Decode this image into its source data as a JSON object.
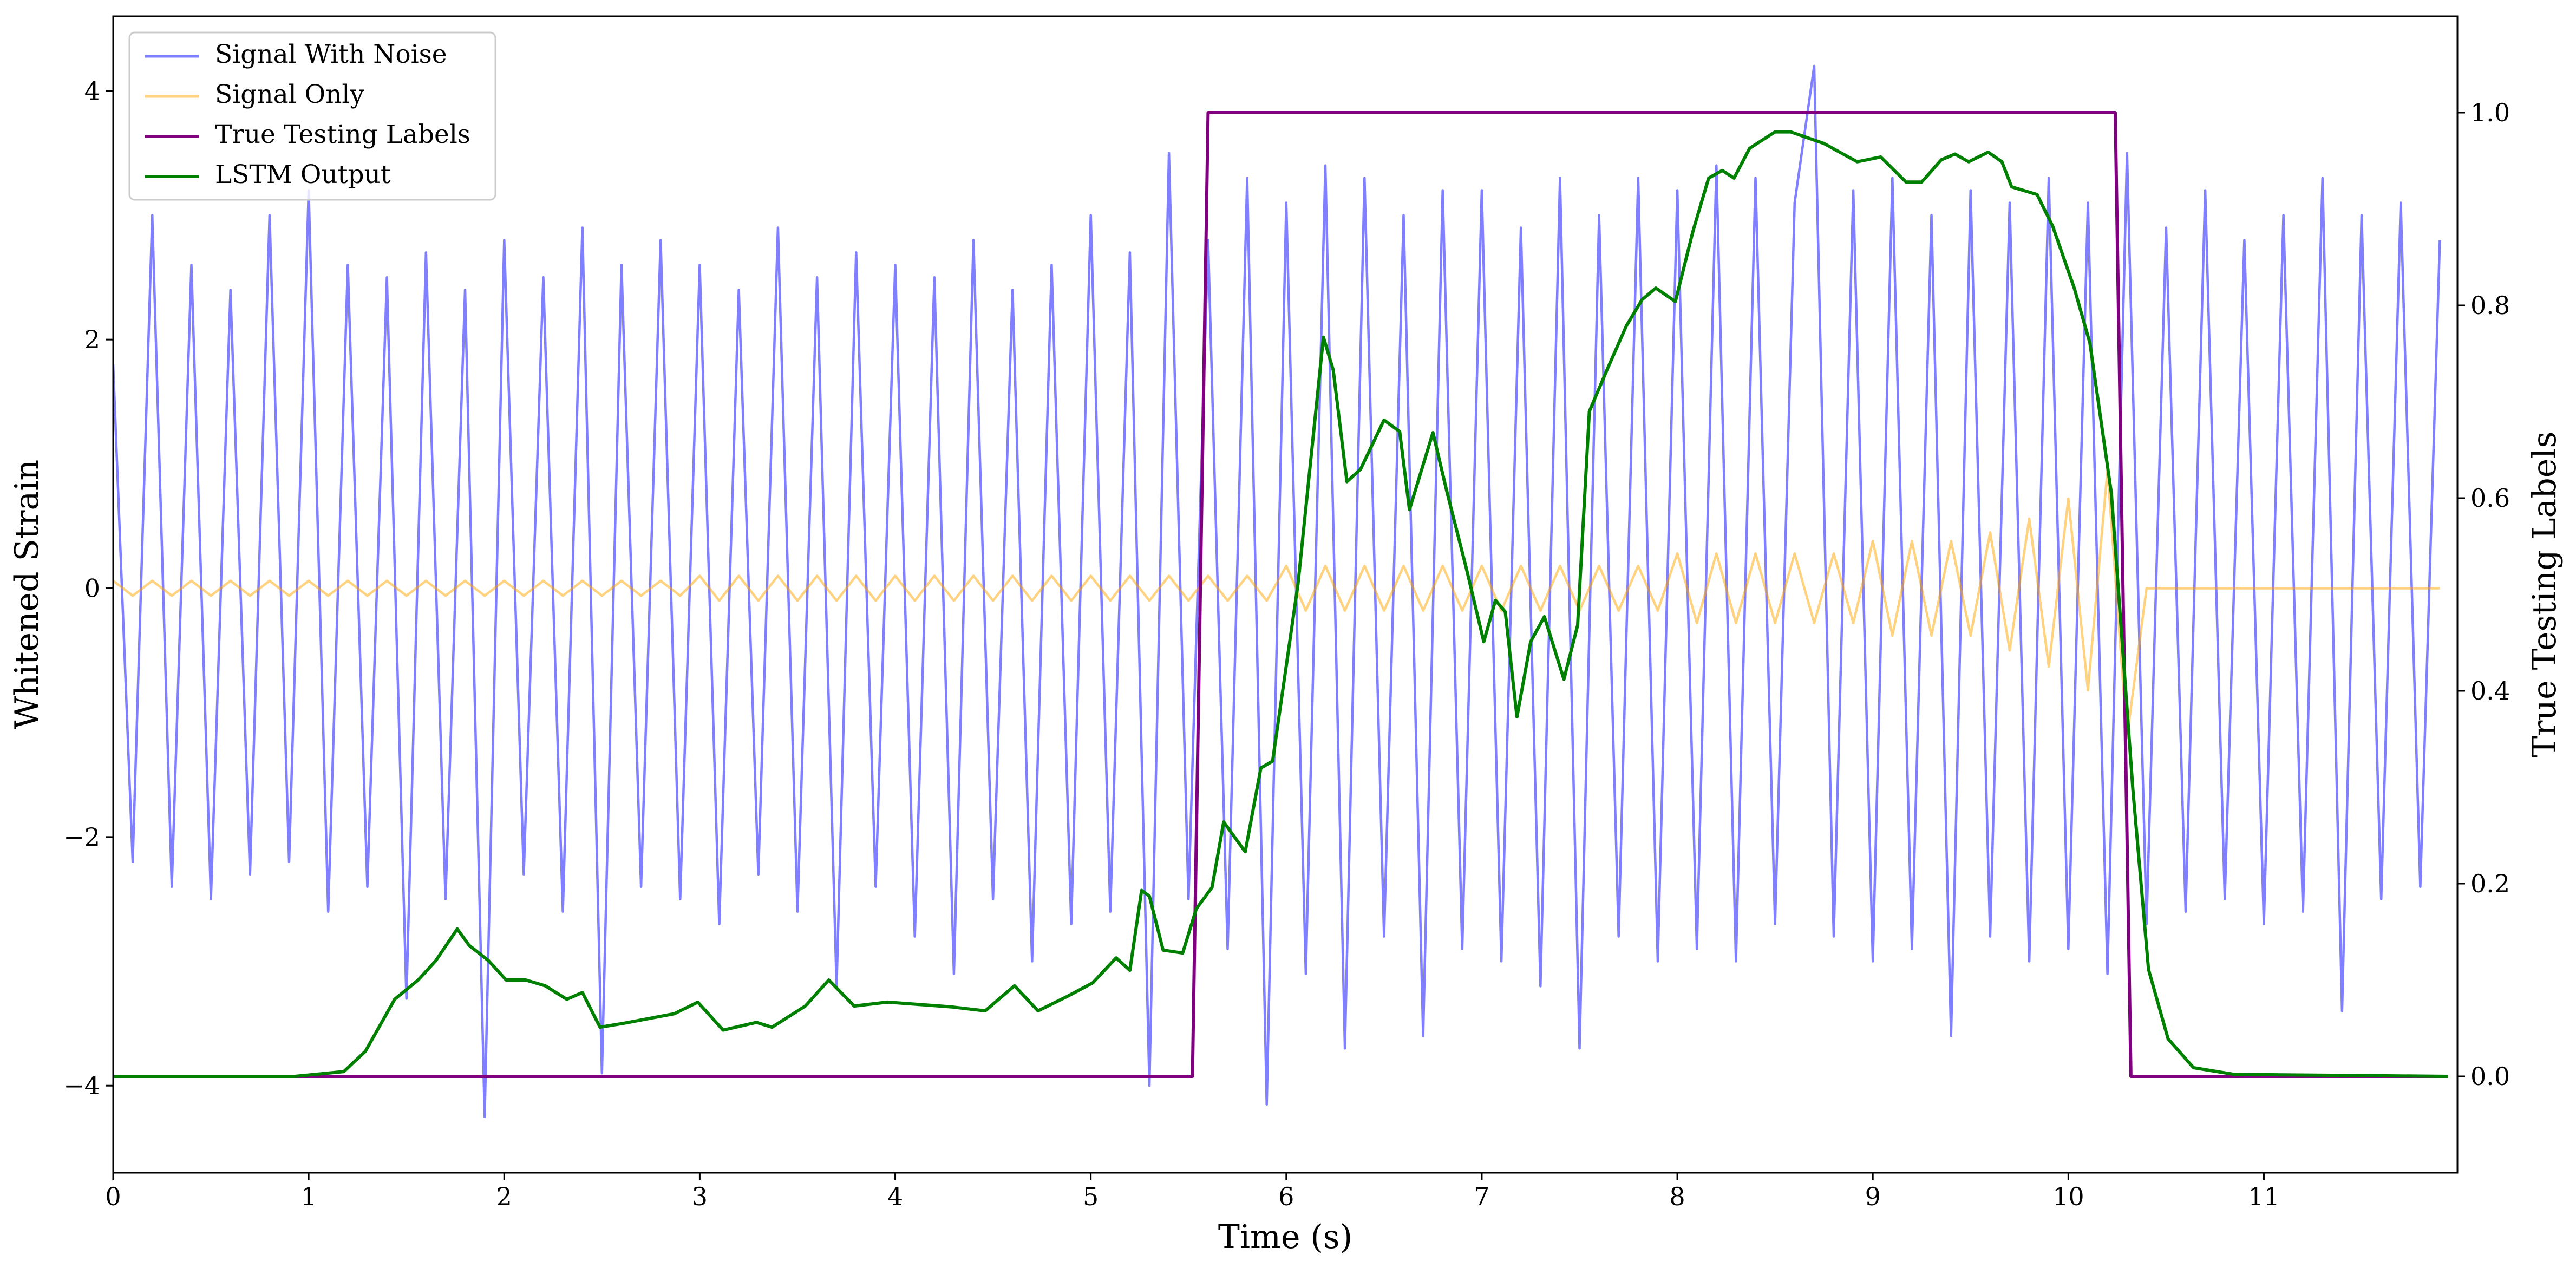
{
  "chart_data": {
    "type": "line",
    "xlabel": "Time (s)",
    "ylabel": "Whitened Strain",
    "y2label": "True Testing Labels",
    "legend": "upper left",
    "xlim": [
      0,
      11.99
    ],
    "ylim": [
      -4.7,
      4.6
    ],
    "y2lim": [
      -0.1,
      1.1
    ],
    "xticks": [
      0,
      1,
      2,
      3,
      4,
      5,
      6,
      7,
      8,
      9,
      10,
      11
    ],
    "yticks": [
      {
        "value": -4,
        "label": "−4"
      },
      {
        "value": -2,
        "label": "−2"
      },
      0,
      2,
      4
    ],
    "y2ticks": [
      {
        "value": 0,
        "label": "0.0"
      },
      {
        "value": 0.2,
        "label": "0.2"
      },
      {
        "value": 0.4,
        "label": "0.4"
      },
      {
        "value": 0.6,
        "label": "0.6"
      },
      {
        "value": 0.8,
        "label": "0.8"
      },
      {
        "value": 1,
        "label": "1.0"
      }
    ],
    "x": [
      0,
      0.1,
      0.2,
      0.3,
      0.4,
      0.5,
      0.6,
      0.7,
      0.8,
      0.9,
      1,
      1.1,
      1.2,
      1.3,
      1.4,
      1.5,
      1.6,
      1.7,
      1.8,
      1.9,
      2,
      2.1,
      2.2,
      2.3,
      2.4,
      2.5,
      2.6,
      2.7,
      2.8,
      2.9,
      3,
      3.1,
      3.2,
      3.3,
      3.4,
      3.5,
      3.6,
      3.7,
      3.8,
      3.9,
      4,
      4.1,
      4.2,
      4.3,
      4.4,
      4.5,
      4.6,
      4.7,
      4.8,
      4.9,
      5,
      5.1,
      5.2,
      5.3,
      5.4,
      5.5,
      5.6,
      5.7,
      5.8,
      5.9,
      6,
      6.1,
      6.2,
      6.3,
      6.4,
      6.5,
      6.6,
      6.7,
      6.8,
      6.9,
      7,
      7.1,
      7.2,
      7.3,
      7.4,
      7.5,
      7.6,
      7.7,
      7.8,
      7.9,
      8,
      8.1,
      8.2,
      8.3,
      8.4,
      8.5,
      8.6,
      8.7,
      8.8,
      8.9,
      9,
      9.1,
      9.2,
      9.3,
      9.4,
      9.5,
      9.6,
      9.7,
      9.8,
      9.9,
      10,
      10.1,
      10.2,
      10.3,
      10.4,
      10.5,
      10.6,
      10.7,
      10.8,
      10.9,
      11,
      11.1,
      11.2,
      11.3,
      11.4,
      11.5,
      11.6,
      11.7,
      11.8,
      11.9
    ],
    "series": [
      {
        "name": "Signal With Noise",
        "color": "#0000ff",
        "alpha": 0.5,
        "values": [
          1.8,
          -2.2,
          3.0,
          -2.4,
          2.6,
          -2.5,
          2.4,
          -2.3,
          3.0,
          -2.2,
          3.2,
          -2.6,
          2.6,
          -2.4,
          2.5,
          -3.3,
          2.7,
          -2.5,
          2.4,
          -4.25,
          2.8,
          -2.3,
          2.5,
          -2.6,
          2.9,
          -3.9,
          2.6,
          -2.4,
          2.8,
          -2.5,
          2.6,
          -2.7,
          2.4,
          -2.3,
          2.9,
          -2.6,
          2.5,
          -3.2,
          2.7,
          -2.4,
          2.6,
          -2.8,
          2.5,
          -3.1,
          2.8,
          -2.5,
          2.4,
          -3.0,
          2.6,
          -2.7,
          3.0,
          -2.6,
          2.7,
          -4.0,
          3.5,
          -2.5,
          2.8,
          -2.9,
          3.3,
          -4.15,
          3.1,
          -3.1,
          3.4,
          -3.7,
          3.3,
          -2.8,
          3.0,
          -3.6,
          3.2,
          -2.9,
          3.2,
          -3.0,
          2.9,
          -3.2,
          3.3,
          -3.7,
          3.0,
          -2.8,
          3.3,
          -3.0,
          3.2,
          -2.9,
          3.4,
          -3.0,
          3.3,
          -2.7,
          3.1,
          4.2,
          -2.8,
          3.2,
          -3.0,
          3.3,
          -2.9,
          3.0,
          -3.6,
          3.2,
          -2.8,
          3.1,
          -3.0,
          3.3,
          -2.9,
          3.1,
          -3.1,
          3.5,
          -2.7,
          2.9,
          -2.6,
          3.2,
          -2.5,
          2.8,
          -2.7,
          3.0,
          -2.6,
          3.3,
          -3.4,
          3.0,
          -2.5,
          3.1,
          -2.4,
          2.8
        ]
      },
      {
        "name": "Signal Only",
        "color": "#ffa500",
        "alpha": 0.5,
        "values": [
          0.06,
          -0.06,
          0.06,
          -0.06,
          0.06,
          -0.06,
          0.06,
          -0.06,
          0.06,
          -0.06,
          0.06,
          -0.06,
          0.06,
          -0.06,
          0.06,
          -0.06,
          0.06,
          -0.06,
          0.06,
          -0.06,
          0.06,
          -0.06,
          0.06,
          -0.06,
          0.06,
          -0.06,
          0.06,
          -0.06,
          0.06,
          -0.06,
          0.1,
          -0.1,
          0.1,
          -0.1,
          0.1,
          -0.1,
          0.1,
          -0.1,
          0.1,
          -0.1,
          0.1,
          -0.1,
          0.1,
          -0.1,
          0.1,
          -0.1,
          0.1,
          -0.1,
          0.1,
          -0.1,
          0.1,
          -0.1,
          0.1,
          -0.1,
          0.1,
          -0.1,
          0.1,
          -0.1,
          0.1,
          -0.1,
          0.18,
          -0.18,
          0.18,
          -0.18,
          0.18,
          -0.18,
          0.18,
          -0.18,
          0.18,
          -0.18,
          0.18,
          -0.18,
          0.18,
          -0.18,
          0.18,
          -0.18,
          0.18,
          -0.18,
          0.18,
          -0.18,
          0.28,
          -0.28,
          0.28,
          -0.28,
          0.28,
          -0.28,
          0.28,
          -0.28,
          0.28,
          -0.28,
          0.38,
          -0.38,
          0.38,
          -0.38,
          0.38,
          -0.38,
          0.45,
          -0.5,
          0.56,
          -0.63,
          0.72,
          -0.82,
          0.95,
          -1.2,
          0,
          0,
          0,
          0,
          0,
          0,
          0,
          0,
          0,
          0,
          0,
          0,
          0,
          0,
          0,
          0
        ]
      },
      {
        "name": "True Testing Labels",
        "color": "#800080",
        "alpha": 1,
        "axis": "y2",
        "x": [
          0,
          5.52,
          5.6,
          10.24,
          10.32,
          11.94
        ],
        "values": [
          0,
          0,
          1,
          1,
          0,
          0
        ]
      },
      {
        "name": "LSTM Output",
        "color": "#008000",
        "alpha": 1,
        "axis": "y2",
        "x": [
          0,
          0.93,
          1.18,
          1.29,
          1.44,
          1.56,
          1.65,
          1.76,
          1.82,
          1.92,
          2.01,
          2.11,
          2.21,
          2.32,
          2.4,
          2.49,
          2.61,
          2.74,
          2.87,
          2.99,
          3.12,
          3.29,
          3.37,
          3.54,
          3.66,
          3.79,
          3.96,
          4.29,
          4.46,
          4.61,
          4.73,
          4.88,
          5.01,
          5.13,
          5.2,
          5.26,
          5.3,
          5.37,
          5.47,
          5.54,
          5.62,
          5.68,
          5.79,
          5.87,
          5.93,
          6.06,
          6.19,
          6.24,
          6.31,
          6.38,
          6.5,
          6.58,
          6.63,
          6.75,
          6.82,
          6.92,
          7.01,
          7.07,
          7.12,
          7.18,
          7.25,
          7.32,
          7.42,
          7.49,
          7.55,
          7.64,
          7.74,
          7.82,
          7.89,
          7.99,
          8.08,
          8.16,
          8.23,
          8.29,
          8.37,
          8.5,
          8.58,
          8.75,
          8.92,
          9.04,
          9.17,
          9.25,
          9.35,
          9.42,
          9.49,
          9.59,
          9.66,
          9.71,
          9.84,
          9.92,
          10.03,
          10.11,
          10.22,
          10.33,
          10.41,
          10.51,
          10.64,
          10.85,
          11.94
        ],
        "values": [
          0,
          0,
          0.005,
          0.026,
          0.08,
          0.1,
          0.12,
          0.153,
          0.136,
          0.12,
          0.1,
          0.1,
          0.094,
          0.08,
          0.087,
          0.051,
          0.055,
          0.06,
          0.065,
          0.077,
          0.048,
          0.056,
          0.051,
          0.073,
          0.1,
          0.073,
          0.077,
          0.072,
          0.068,
          0.094,
          0.068,
          0.083,
          0.097,
          0.123,
          0.11,
          0.193,
          0.187,
          0.131,
          0.128,
          0.174,
          0.196,
          0.264,
          0.233,
          0.32,
          0.327,
          0.511,
          0.767,
          0.733,
          0.617,
          0.63,
          0.681,
          0.669,
          0.588,
          0.668,
          0.608,
          0.528,
          0.451,
          0.494,
          0.482,
          0.373,
          0.451,
          0.477,
          0.412,
          0.468,
          0.69,
          0.733,
          0.779,
          0.806,
          0.818,
          0.804,
          0.877,
          0.932,
          0.94,
          0.932,
          0.963,
          0.98,
          0.98,
          0.968,
          0.949,
          0.954,
          0.928,
          0.928,
          0.951,
          0.957,
          0.949,
          0.959,
          0.949,
          0.923,
          0.915,
          0.882,
          0.818,
          0.761,
          0.605,
          0.298,
          0.111,
          0.039,
          0.009,
          0.002,
          0
        ]
      }
    ]
  }
}
